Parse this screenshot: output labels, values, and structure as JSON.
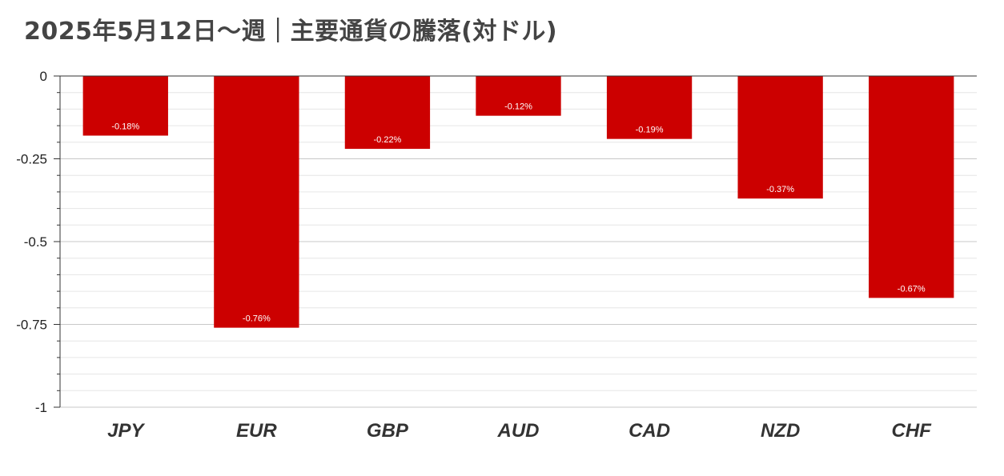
{
  "chart_data": {
    "type": "bar",
    "title": "2025年5月12日～週｜主要通貨の騰落(対ドル)",
    "categories": [
      "JPY",
      "EUR",
      "GBP",
      "AUD",
      "CAD",
      "NZD",
      "CHF"
    ],
    "values": [
      -0.18,
      -0.76,
      -0.22,
      -0.12,
      -0.19,
      -0.37,
      -0.67
    ],
    "data_labels": [
      "-0.18%",
      "-0.76%",
      "-0.22%",
      "-0.12%",
      "-0.19%",
      "-0.37%",
      "-0.67%"
    ],
    "ylim": [
      -1,
      0
    ],
    "yticks": [
      0,
      -0.25,
      -0.5,
      -0.75,
      -1
    ],
    "ytick_labels": [
      "0",
      "-0.25",
      "-0.5",
      "-0.75",
      "-1"
    ],
    "xlabel": "",
    "ylabel": "",
    "grid": true,
    "legend": "none",
    "bar_color": "#cc0000"
  }
}
